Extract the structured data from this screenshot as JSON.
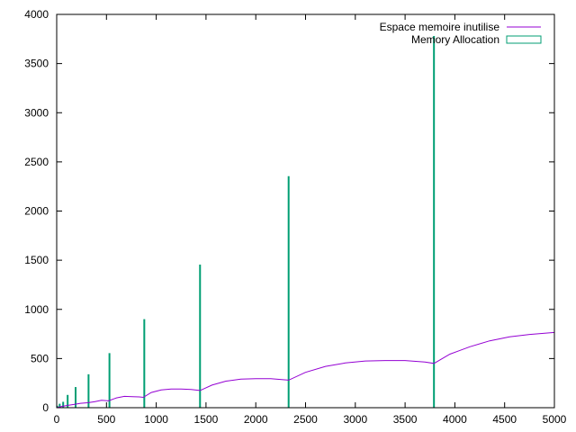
{
  "chart_data": {
    "type": "line",
    "title": "",
    "xlabel": "",
    "ylabel": "",
    "xlim": [
      0,
      5000
    ],
    "ylim": [
      0,
      4000
    ],
    "x_ticks": [
      0,
      500,
      1000,
      1500,
      2000,
      2500,
      3000,
      3500,
      4000,
      4500,
      5000
    ],
    "y_ticks": [
      0,
      500,
      1000,
      1500,
      2000,
      2500,
      3000,
      3500,
      4000
    ],
    "grid": false,
    "legend_position": "top-right",
    "series": [
      {
        "name": "Espace memoire inutilise",
        "style": "line",
        "color": "#9400d3",
        "x": [
          0,
          60,
          120,
          180,
          240,
          310,
          380,
          450,
          520,
          600,
          680,
          760,
          830,
          870,
          950,
          1050,
          1150,
          1250,
          1350,
          1440,
          1560,
          1700,
          1850,
          2000,
          2150,
          2330,
          2500,
          2700,
          2900,
          3100,
          3300,
          3500,
          3700,
          3790,
          3950,
          4150,
          4350,
          4550,
          4750,
          5000
        ],
        "y": [
          0,
          15,
          25,
          35,
          45,
          50,
          60,
          75,
          70,
          100,
          115,
          112,
          110,
          105,
          155,
          180,
          190,
          190,
          185,
          175,
          230,
          270,
          290,
          295,
          295,
          280,
          360,
          420,
          455,
          475,
          480,
          480,
          465,
          450,
          545,
          620,
          680,
          720,
          745,
          765
        ]
      },
      {
        "name": "Memory Allocation",
        "style": "impulses",
        "color": "#009e73",
        "x": [
          5,
          30,
          65,
          110,
          190,
          320,
          530,
          880,
          1440,
          2330,
          3790
        ],
        "y": [
          20,
          40,
          60,
          130,
          210,
          340,
          555,
          900,
          1455,
          2355,
          3780
        ]
      }
    ]
  }
}
